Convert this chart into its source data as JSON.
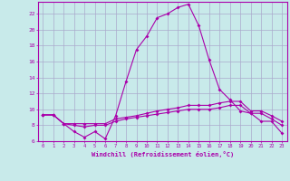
{
  "xlabel": "Windchill (Refroidissement éolien,°C)",
  "bg_color": "#c8eaea",
  "grid_color": "#aaaacc",
  "line_color": "#aa00aa",
  "x_values": [
    0,
    1,
    2,
    3,
    4,
    5,
    6,
    7,
    8,
    9,
    10,
    11,
    12,
    13,
    14,
    15,
    16,
    17,
    18,
    19,
    20,
    21,
    22,
    23
  ],
  "line1": [
    9.3,
    9.3,
    8.2,
    7.2,
    6.5,
    7.2,
    6.3,
    9.2,
    13.5,
    17.5,
    19.2,
    21.5,
    22.0,
    22.8,
    23.2,
    20.5,
    16.2,
    12.5,
    11.2,
    9.8,
    9.5,
    8.5,
    8.5,
    7.0
  ],
  "line2": [
    9.3,
    9.3,
    8.2,
    8.2,
    8.2,
    8.2,
    8.2,
    8.8,
    9.0,
    9.2,
    9.5,
    9.8,
    10.0,
    10.2,
    10.5,
    10.5,
    10.5,
    10.8,
    11.0,
    11.0,
    9.8,
    9.8,
    9.2,
    8.5
  ],
  "line3": [
    9.3,
    9.3,
    8.2,
    8.0,
    7.8,
    8.0,
    8.0,
    8.5,
    8.8,
    9.0,
    9.2,
    9.4,
    9.6,
    9.8,
    10.0,
    10.0,
    10.0,
    10.2,
    10.5,
    10.5,
    9.5,
    9.5,
    8.8,
    8.0
  ],
  "ylim": [
    6,
    23
  ],
  "yticks": [
    6,
    8,
    10,
    12,
    14,
    16,
    18,
    20,
    22
  ],
  "xlim": [
    -0.5,
    23.5
  ]
}
